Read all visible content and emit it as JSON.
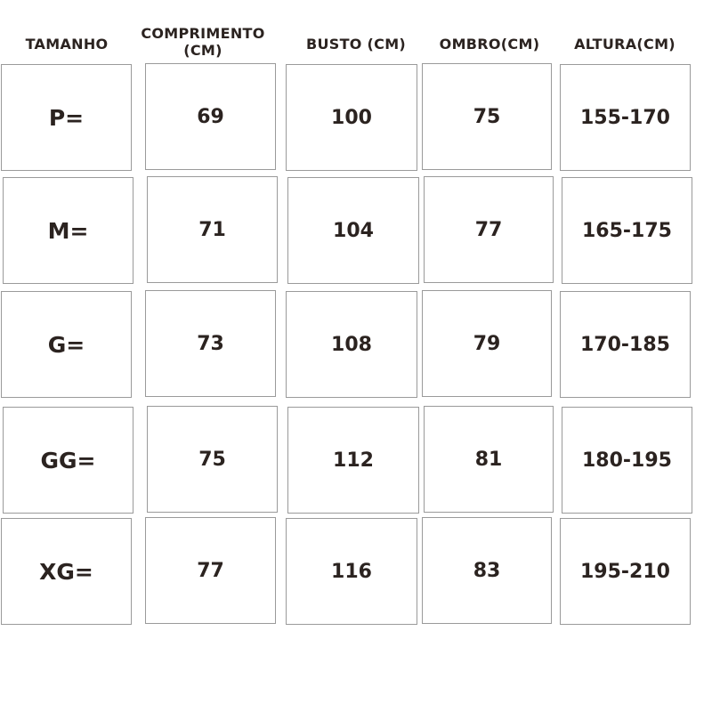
{
  "chart_data": {
    "type": "table",
    "columns": [
      "TAMANHO",
      "COMPRIMENTO (CM)",
      "BUSTO (CM)",
      "OMBRO(CM)",
      "ALTURA(CM)"
    ],
    "rows": [
      [
        "P=",
        "69",
        "100",
        "75",
        "155-170"
      ],
      [
        "M=",
        "71",
        "104",
        "77",
        "165-175"
      ],
      [
        "G=",
        "73",
        "108",
        "79",
        "170-185"
      ],
      [
        "GG=",
        "75",
        "112",
        "81",
        "180-195"
      ],
      [
        "XG=",
        "77",
        "116",
        "83",
        "195-210"
      ]
    ]
  },
  "colors": {
    "text": "#2b2320",
    "border": "#9a9a9a"
  }
}
